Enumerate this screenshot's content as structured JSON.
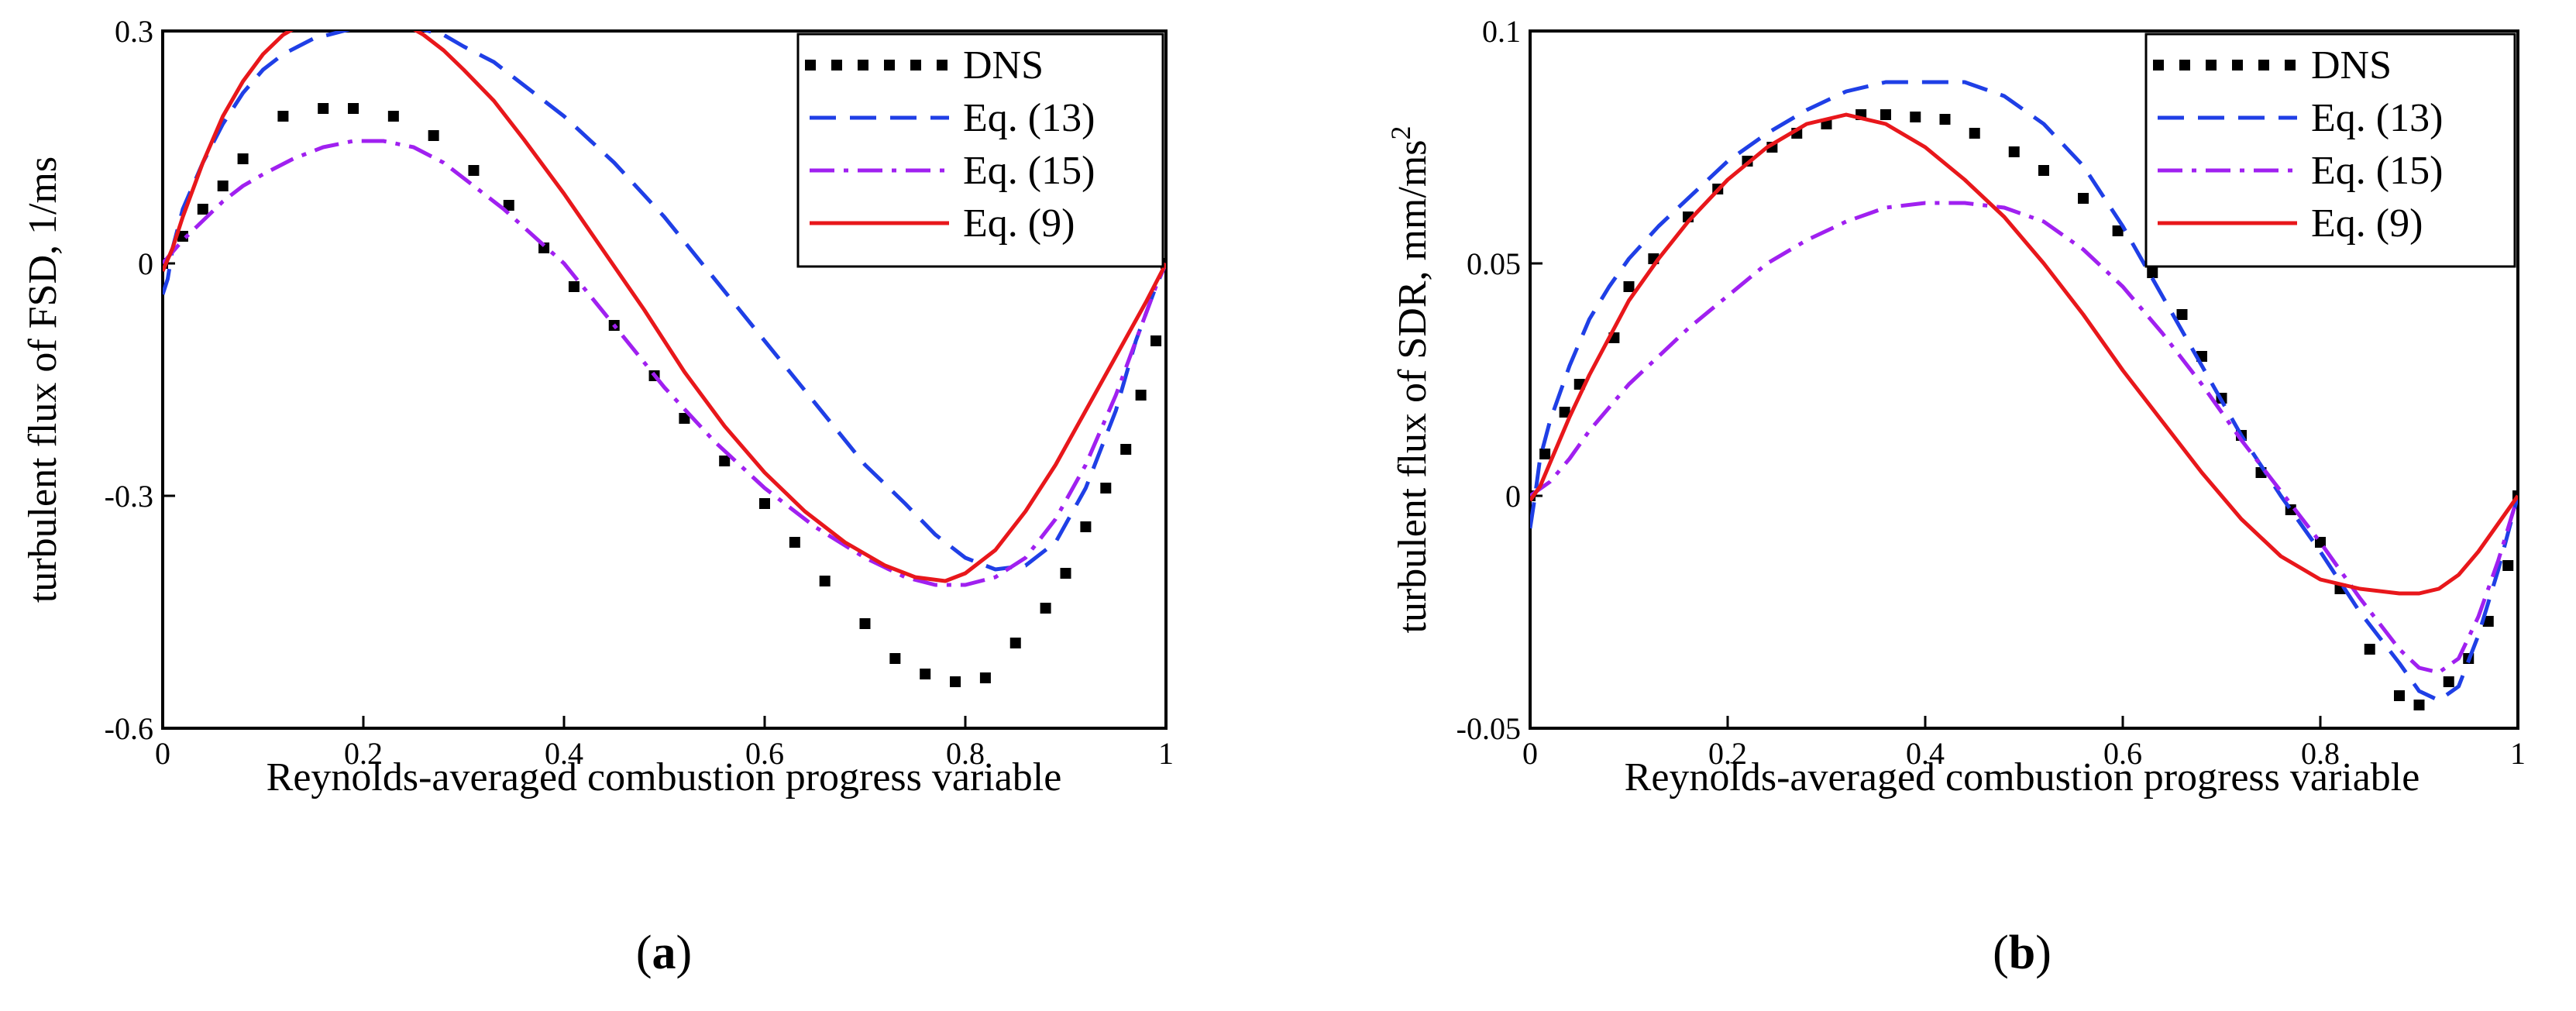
{
  "chart_data": [
    {
      "type": "line",
      "panel": "a",
      "caption_open": "(",
      "caption_letter": "a",
      "caption_close": ")",
      "xlabel": "Reynolds-averaged combustion progress variable",
      "ylabel": "turbulent flux of FSD, 1/ms",
      "xlim": [
        0,
        1
      ],
      "ylim": [
        -0.6,
        0.3
      ],
      "xticks": [
        "0",
        "0.2",
        "0.4",
        "0.6",
        "0.8",
        "1"
      ],
      "yticks": [
        {
          "value": 0.3,
          "label": "0.3"
        },
        {
          "value": 0,
          "label": "0"
        },
        {
          "value": -0.3,
          "label": "-0.3"
        },
        {
          "value": -0.6,
          "label": "-0.6"
        }
      ],
      "legend_position": "top-right",
      "series": [
        {
          "name": "DNS",
          "style": "squares",
          "color": "#000000",
          "x": [
            0,
            0.02,
            0.04,
            0.06,
            0.08,
            0.12,
            0.16,
            0.19,
            0.23,
            0.27,
            0.31,
            0.345,
            0.38,
            0.41,
            0.45,
            0.49,
            0.52,
            0.56,
            0.6,
            0.63,
            0.66,
            0.7,
            0.73,
            0.76,
            0.79,
            0.82,
            0.85,
            0.88,
            0.9,
            0.92,
            0.94,
            0.96,
            0.975,
            0.99,
            1.0
          ],
          "y": [
            0.0,
            0.035,
            0.07,
            0.1,
            0.135,
            0.19,
            0.2,
            0.2,
            0.19,
            0.165,
            0.12,
            0.075,
            0.02,
            -0.03,
            -0.08,
            -0.145,
            -0.2,
            -0.255,
            -0.31,
            -0.36,
            -0.41,
            -0.465,
            -0.51,
            -0.53,
            -0.54,
            -0.535,
            -0.49,
            -0.445,
            -0.4,
            -0.34,
            -0.29,
            -0.24,
            -0.17,
            -0.1,
            0.0
          ]
        },
        {
          "name": "Eq. (13)",
          "style": "dashed",
          "color": "#1f3fe6",
          "x": [
            0,
            0.005,
            0.01,
            0.02,
            0.04,
            0.06,
            0.08,
            0.1,
            0.12,
            0.15,
            0.18,
            0.2,
            0.22,
            0.25,
            0.28,
            0.3,
            0.33,
            0.36,
            0.4,
            0.45,
            0.5,
            0.55,
            0.6,
            0.65,
            0.7,
            0.74,
            0.77,
            0.8,
            0.83,
            0.86,
            0.89,
            0.92,
            0.95,
            0.97,
            0.99,
            1.0
          ],
          "y": [
            -0.04,
            -0.02,
            0.02,
            0.07,
            0.13,
            0.18,
            0.22,
            0.25,
            0.27,
            0.29,
            0.3,
            0.307,
            0.31,
            0.305,
            0.295,
            0.28,
            0.26,
            0.23,
            0.19,
            0.13,
            0.06,
            -0.02,
            -0.1,
            -0.18,
            -0.26,
            -0.31,
            -0.35,
            -0.38,
            -0.395,
            -0.39,
            -0.36,
            -0.29,
            -0.19,
            -0.1,
            -0.03,
            0.0
          ]
        },
        {
          "name": "Eq. (15)",
          "style": "dashdot",
          "color": "#a020f0",
          "x": [
            0,
            0.02,
            0.04,
            0.06,
            0.08,
            0.1,
            0.13,
            0.16,
            0.19,
            0.22,
            0.25,
            0.28,
            0.31,
            0.34,
            0.37,
            0.4,
            0.45,
            0.5,
            0.55,
            0.6,
            0.65,
            0.7,
            0.74,
            0.77,
            0.8,
            0.83,
            0.86,
            0.89,
            0.92,
            0.95,
            0.97,
            0.99,
            1.0
          ],
          "y": [
            0.0,
            0.03,
            0.055,
            0.08,
            0.1,
            0.115,
            0.135,
            0.15,
            0.158,
            0.158,
            0.15,
            0.13,
            0.1,
            0.07,
            0.035,
            0.0,
            -0.08,
            -0.16,
            -0.23,
            -0.29,
            -0.34,
            -0.38,
            -0.405,
            -0.415,
            -0.415,
            -0.405,
            -0.38,
            -0.33,
            -0.26,
            -0.17,
            -0.1,
            -0.03,
            0.0
          ]
        },
        {
          "name": "Eq. (9)",
          "style": "solid",
          "color": "#e8171b",
          "x": [
            0,
            0.01,
            0.02,
            0.04,
            0.06,
            0.08,
            0.1,
            0.12,
            0.14,
            0.16,
            0.18,
            0.2,
            0.22,
            0.24,
            0.26,
            0.28,
            0.3,
            0.33,
            0.36,
            0.4,
            0.44,
            0.48,
            0.52,
            0.56,
            0.6,
            0.64,
            0.68,
            0.72,
            0.75,
            0.78,
            0.8,
            0.83,
            0.86,
            0.89,
            0.92,
            0.95,
            0.98,
            1.0
          ],
          "y": [
            -0.01,
            0.02,
            0.06,
            0.13,
            0.19,
            0.235,
            0.27,
            0.295,
            0.31,
            0.32,
            0.325,
            0.325,
            0.32,
            0.31,
            0.295,
            0.275,
            0.25,
            0.21,
            0.16,
            0.09,
            0.015,
            -0.06,
            -0.14,
            -0.21,
            -0.27,
            -0.32,
            -0.36,
            -0.39,
            -0.405,
            -0.41,
            -0.4,
            -0.37,
            -0.32,
            -0.26,
            -0.19,
            -0.12,
            -0.05,
            0.0
          ]
        }
      ]
    },
    {
      "type": "line",
      "panel": "b",
      "caption_open": "(",
      "caption_letter": "b",
      "caption_close": ")",
      "xlabel": "Reynolds-averaged combustion progress variable",
      "ylabel": "turbulent flux of SDR, mm/ms",
      "ylabel_sup": "2",
      "xlim": [
        0,
        1
      ],
      "ylim": [
        -0.05,
        0.1
      ],
      "xticks": [
        "0",
        "0.2",
        "0.4",
        "0.6",
        "0.8",
        "1"
      ],
      "yticks": [
        {
          "value": 0.1,
          "label": "0.1"
        },
        {
          "value": 0.05,
          "label": "0.05"
        },
        {
          "value": 0,
          "label": "0"
        },
        {
          "value": -0.05,
          "label": "-0.05"
        }
      ],
      "legend_position": "top-right",
      "series": [
        {
          "name": "DNS",
          "style": "squares",
          "color": "#000000",
          "x": [
            0,
            0.015,
            0.035,
            0.05,
            0.085,
            0.1,
            0.125,
            0.16,
            0.19,
            0.22,
            0.245,
            0.27,
            0.3,
            0.335,
            0.36,
            0.39,
            0.42,
            0.45,
            0.49,
            0.52,
            0.56,
            0.595,
            0.63,
            0.66,
            0.68,
            0.7,
            0.72,
            0.74,
            0.77,
            0.8,
            0.82,
            0.85,
            0.88,
            0.9,
            0.93,
            0.95,
            0.97,
            0.99,
            1.0
          ],
          "y": [
            0.0,
            0.009,
            0.018,
            0.024,
            0.034,
            0.045,
            0.051,
            0.06,
            0.066,
            0.072,
            0.075,
            0.078,
            0.08,
            0.082,
            0.082,
            0.0815,
            0.081,
            0.078,
            0.074,
            0.07,
            0.064,
            0.057,
            0.048,
            0.039,
            0.03,
            0.021,
            0.013,
            0.005,
            -0.003,
            -0.01,
            -0.02,
            -0.033,
            -0.043,
            -0.045,
            -0.04,
            -0.035,
            -0.027,
            -0.015,
            0.0
          ]
        },
        {
          "name": "Eq. (13)",
          "style": "dashed",
          "color": "#1f3fe6",
          "x": [
            0,
            0.005,
            0.01,
            0.02,
            0.04,
            0.06,
            0.08,
            0.1,
            0.13,
            0.16,
            0.2,
            0.24,
            0.28,
            0.32,
            0.36,
            0.4,
            0.44,
            0.48,
            0.52,
            0.56,
            0.6,
            0.64,
            0.68,
            0.72,
            0.76,
            0.8,
            0.84,
            0.88,
            0.9,
            0.92,
            0.94,
            0.96,
            0.98,
            1.0
          ],
          "y": [
            -0.007,
            0.0,
            0.008,
            0.016,
            0.028,
            0.038,
            0.045,
            0.051,
            0.058,
            0.064,
            0.072,
            0.078,
            0.083,
            0.087,
            0.089,
            0.089,
            0.089,
            0.086,
            0.08,
            0.071,
            0.058,
            0.043,
            0.028,
            0.013,
            0.0,
            -0.012,
            -0.025,
            -0.036,
            -0.042,
            -0.044,
            -0.041,
            -0.03,
            -0.016,
            0.0
          ]
        },
        {
          "name": "Eq. (15)",
          "style": "dashdot",
          "color": "#a020f0",
          "x": [
            0,
            0.02,
            0.04,
            0.06,
            0.08,
            0.1,
            0.13,
            0.16,
            0.2,
            0.24,
            0.28,
            0.32,
            0.36,
            0.4,
            0.44,
            0.48,
            0.52,
            0.56,
            0.6,
            0.64,
            0.68,
            0.72,
            0.76,
            0.8,
            0.84,
            0.88,
            0.9,
            0.92,
            0.94,
            0.96,
            0.98,
            1.0
          ],
          "y": [
            0.0,
            0.003,
            0.008,
            0.014,
            0.019,
            0.024,
            0.03,
            0.036,
            0.043,
            0.05,
            0.055,
            0.059,
            0.062,
            0.063,
            0.063,
            0.062,
            0.059,
            0.053,
            0.045,
            0.035,
            0.024,
            0.012,
            0.001,
            -0.01,
            -0.022,
            -0.033,
            -0.037,
            -0.038,
            -0.035,
            -0.026,
            -0.014,
            0.0
          ]
        },
        {
          "name": "Eq. (9)",
          "style": "solid",
          "color": "#e8171b",
          "x": [
            0,
            0.01,
            0.02,
            0.04,
            0.06,
            0.08,
            0.1,
            0.13,
            0.16,
            0.2,
            0.24,
            0.28,
            0.32,
            0.36,
            0.4,
            0.44,
            0.48,
            0.52,
            0.56,
            0.6,
            0.64,
            0.68,
            0.72,
            0.76,
            0.8,
            0.84,
            0.88,
            0.9,
            0.92,
            0.94,
            0.96,
            0.98,
            1.0
          ],
          "y": [
            -0.001,
            0.002,
            0.007,
            0.017,
            0.026,
            0.034,
            0.042,
            0.051,
            0.059,
            0.068,
            0.075,
            0.08,
            0.082,
            0.08,
            0.075,
            0.068,
            0.06,
            0.05,
            0.039,
            0.027,
            0.016,
            0.005,
            -0.005,
            -0.013,
            -0.018,
            -0.02,
            -0.021,
            -0.021,
            -0.02,
            -0.017,
            -0.012,
            -0.006,
            0.0
          ]
        }
      ]
    }
  ]
}
